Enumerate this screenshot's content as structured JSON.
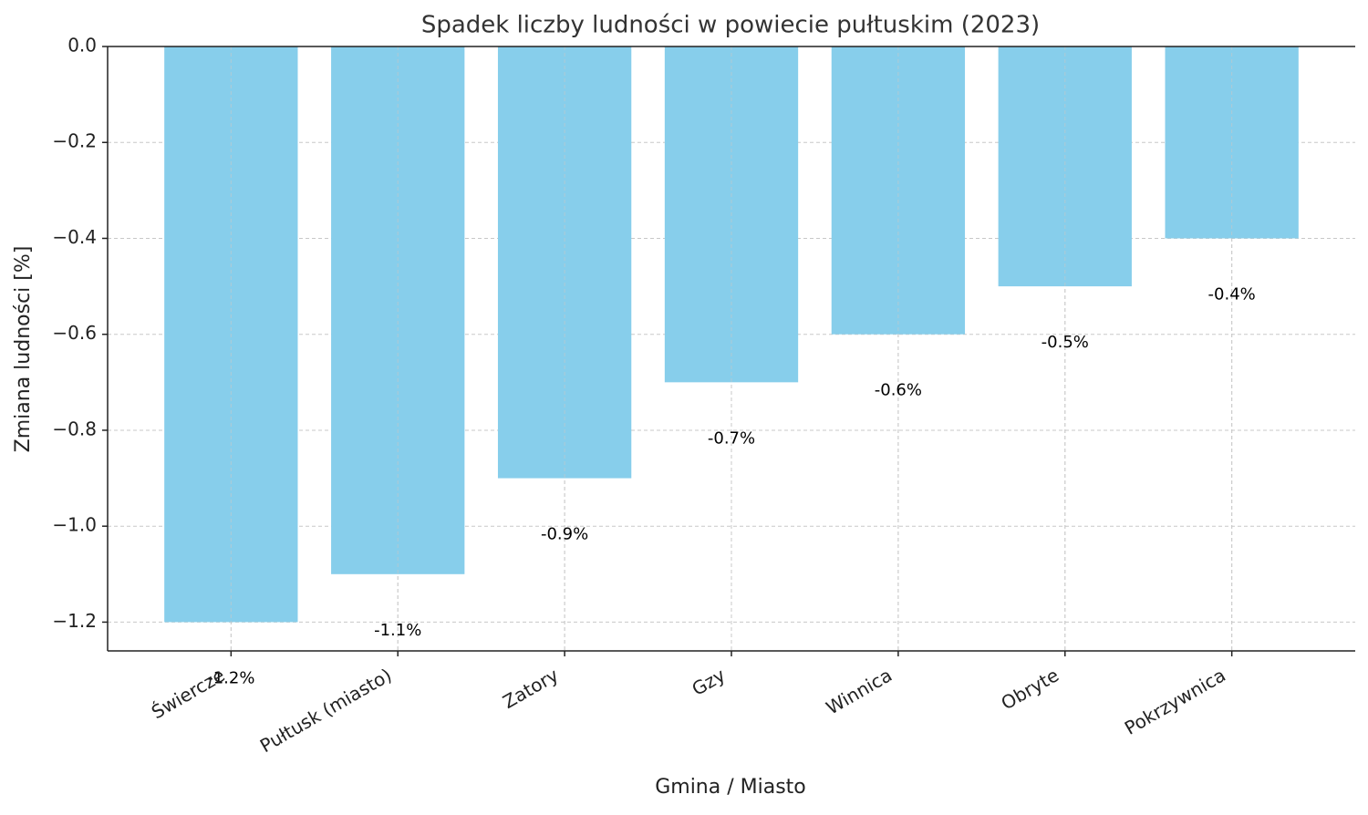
{
  "chart_data": {
    "type": "bar",
    "title": "Spadek liczby ludności w powiecie pułtuskim (2023)",
    "x_label": "Gmina / Miasto",
    "y_label": "Zmiana ludności [%]",
    "categories": [
      "Świercze",
      "Pułtusk (miasto)",
      "Zatory",
      "Gzy",
      "Winnica",
      "Obryte",
      "Pokrzywnica"
    ],
    "values": [
      -1.2,
      -1.1,
      -0.9,
      -0.7,
      -0.6,
      -0.5,
      -0.4
    ],
    "value_labels": [
      "-1.2%",
      "-1.1%",
      "-0.9%",
      "-0.7%",
      "-0.6%",
      "-0.5%",
      "-0.4%"
    ],
    "color": "#87ceeb",
    "ylim": [
      -1.26,
      0
    ],
    "yticks": [
      {
        "value": 0,
        "label": "0.0"
      },
      {
        "value": -0.2,
        "label": "−0.2"
      },
      {
        "value": -0.4,
        "label": "−0.4"
      },
      {
        "value": -0.6,
        "label": "−0.6"
      },
      {
        "value": -0.8,
        "label": "−0.8"
      },
      {
        "value": -1.0,
        "label": "−1.0"
      },
      {
        "value": -1.2,
        "label": "−1.2"
      }
    ],
    "grid": true
  }
}
